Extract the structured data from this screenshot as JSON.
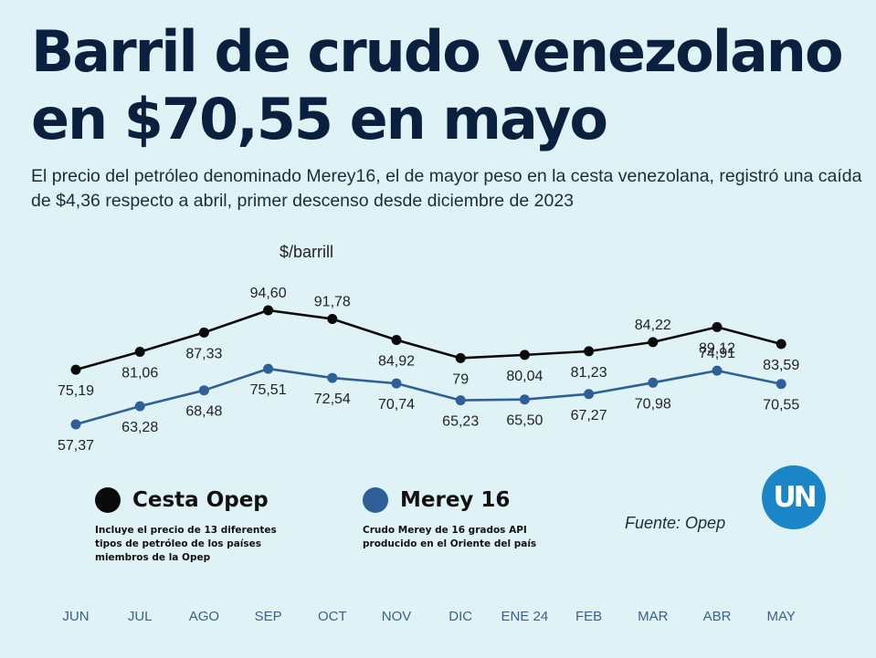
{
  "header": {
    "title": "Barril de crudo venezolano en $70,55 en mayo",
    "subtitle": "El precio del petróleo denominado Merey16, el de mayor peso en la cesta venezolana, registró una caída de $4,36 respecto a abril, primer descenso desde diciembre de 2023"
  },
  "legend": {
    "opep": {
      "name": "Cesta Opep",
      "desc": "Incluye el precio de 13 diferentes tipos de petróleo de los países miembros de la Opep"
    },
    "merey": {
      "name": "Merey 16",
      "desc": "Crudo Merey de 16 grados API producido en el Oriente del país"
    }
  },
  "source": "Fuente: Opep",
  "logo_text": "UN",
  "colors": {
    "background": "#dff3f7",
    "title": "#0b1f3f",
    "opep": "#0a0a0a",
    "merey": "#2f5f99",
    "month_label": "#3d5f8a",
    "logo": "#1a86c7"
  },
  "chart_data": {
    "type": "line",
    "title": "Barril de crudo venezolano en $70,55 en mayo",
    "ylabel": "$/barrill",
    "xlabel": "",
    "categories": [
      "JUN",
      "JUL",
      "AGO",
      "SEP",
      "OCT",
      "NOV",
      "DIC",
      "ENE 24",
      "FEB",
      "MAR",
      "ABR",
      "MAY"
    ],
    "ylim": [
      50,
      100
    ],
    "grid": false,
    "series": [
      {
        "name": "Cesta Opep",
        "values": [
          75.19,
          81.06,
          87.33,
          94.6,
          91.78,
          84.92,
          79,
          80.04,
          81.23,
          84.22,
          89.12,
          83.59
        ],
        "labels": [
          "75,19",
          "81,06",
          "87,33",
          "94,60",
          "91,78",
          "84,92",
          "79",
          "80,04",
          "81,23",
          "84,22",
          "89,12",
          "83,59"
        ]
      },
      {
        "name": "Merey 16",
        "values": [
          57.37,
          63.28,
          68.48,
          75.51,
          72.54,
          70.74,
          65.23,
          65.5,
          67.27,
          70.98,
          74.91,
          70.55
        ],
        "labels": [
          "57,37",
          "63,28",
          "68,48",
          "75,51",
          "72,54",
          "70,74",
          "65,23",
          "65,50",
          "67,27",
          "70,98",
          "74,91",
          "70,55"
        ]
      }
    ]
  }
}
